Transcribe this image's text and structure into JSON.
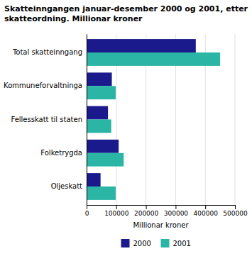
{
  "chart_data": {
    "type": "bar",
    "orientation": "horizontal",
    "title": "Skatteinngangen januar-desember 2000 og 2001, etter\nskatteordning. Millionar kroner",
    "categories": [
      "Oljeskatt",
      "Folketrygda",
      "Fellesskatt til staten",
      "Kommuneforvaltninga",
      "Total skatteinngang"
    ],
    "series": [
      {
        "name": "2000",
        "color": "#1a1a8c",
        "values": [
          47000,
          108000,
          72000,
          85000,
          368000
        ]
      },
      {
        "name": "2001",
        "color": "#2ab5a5",
        "values": [
          98000,
          125000,
          83000,
          98000,
          450000
        ]
      }
    ],
    "xlabel": "Millionar kroner",
    "xlim": [
      0,
      500000
    ],
    "xticks": [
      0,
      100000,
      200000,
      300000,
      400000,
      500000
    ],
    "grid": true,
    "legend": "bottom"
  }
}
